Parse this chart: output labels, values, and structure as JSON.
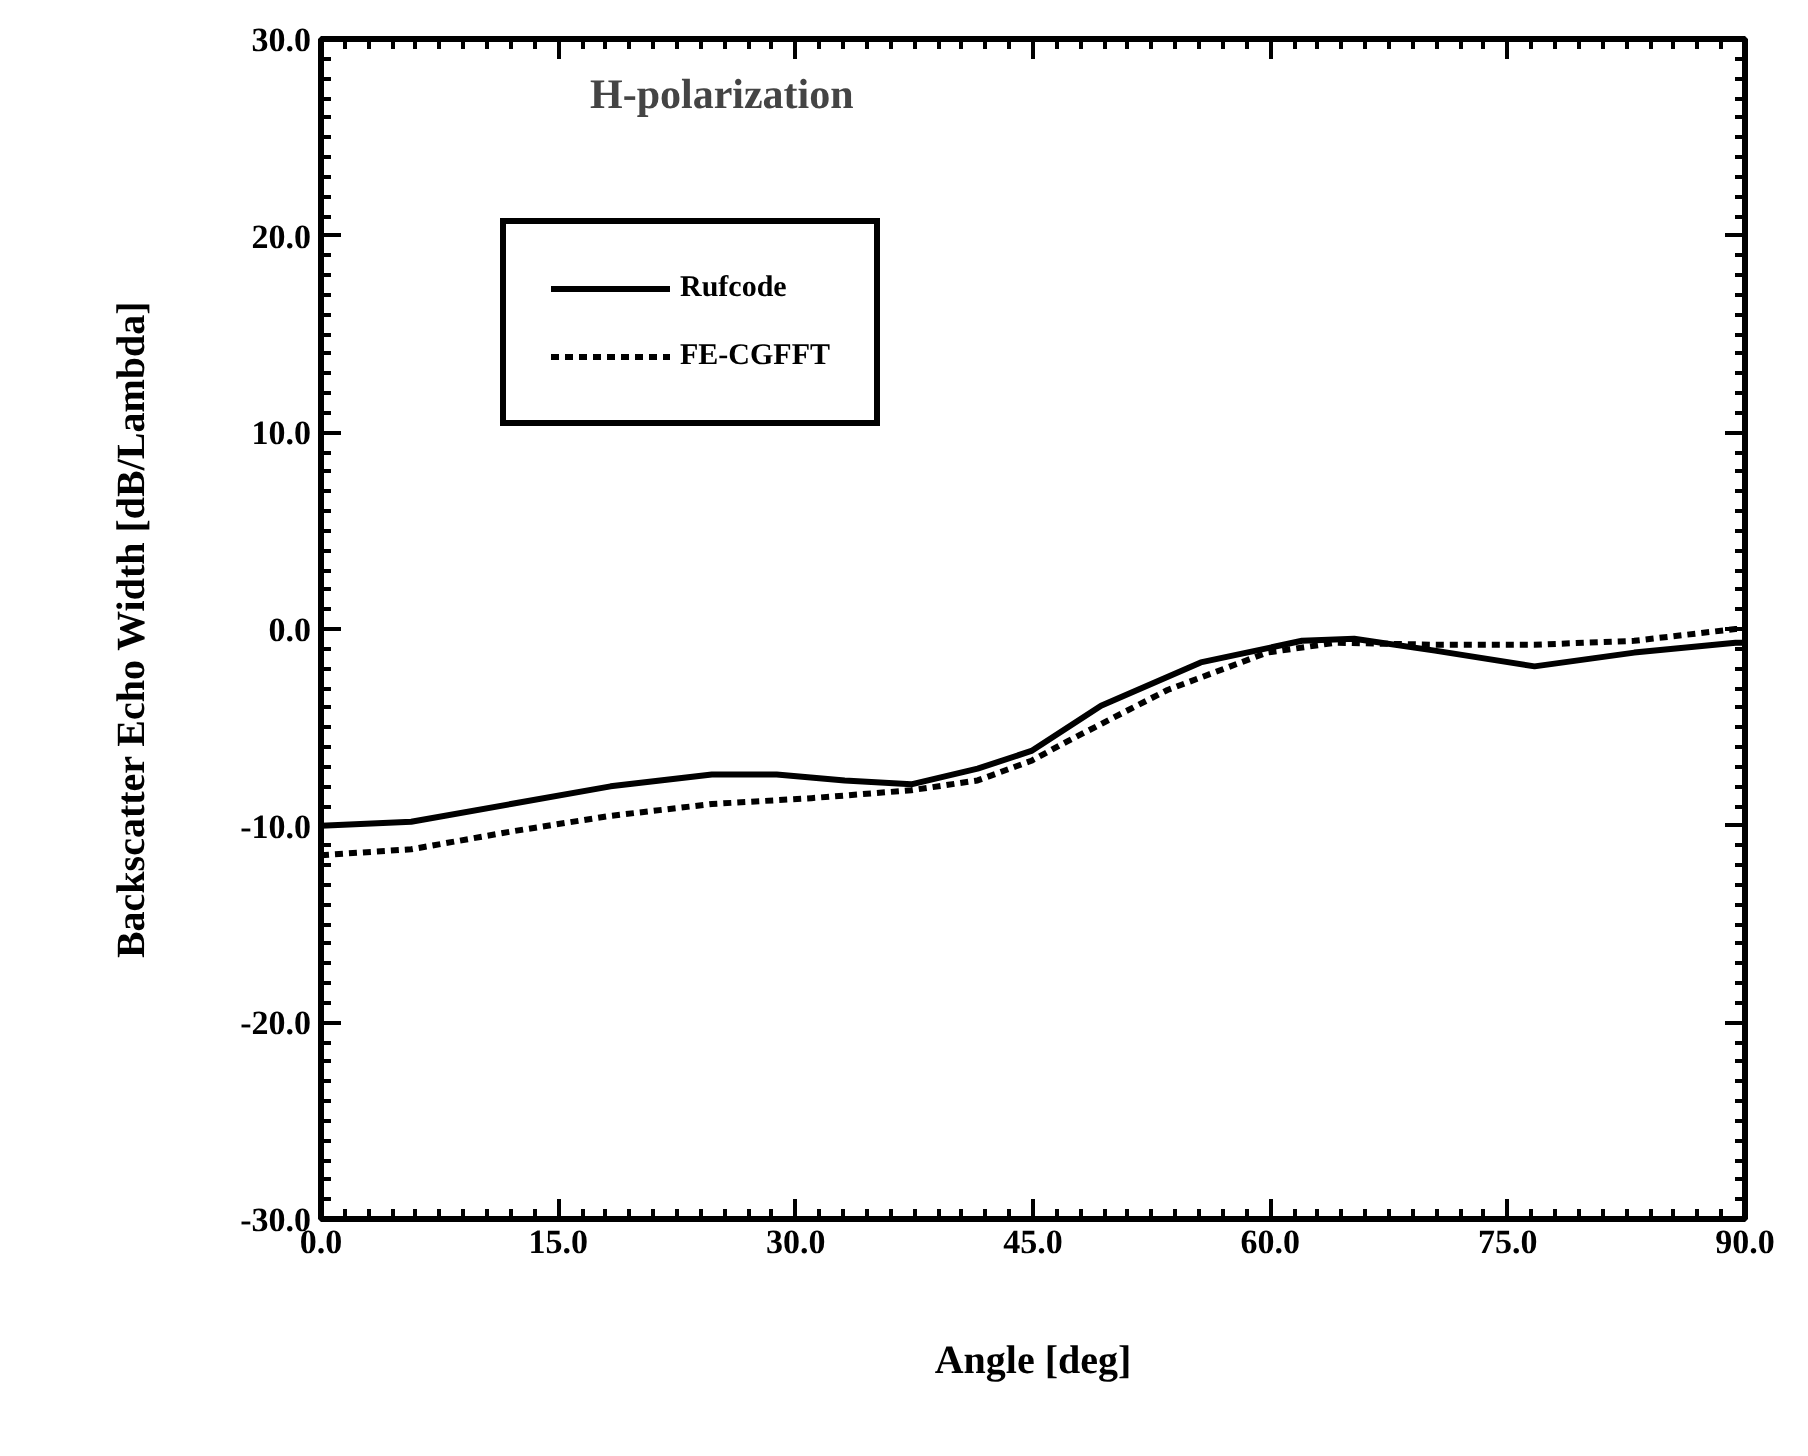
{
  "chart_data": {
    "type": "line",
    "title": "H-polarization",
    "xlabel": "Angle [deg]",
    "ylabel": "Backscatter Echo Width [dB/Lambda]",
    "xlim": [
      0,
      90
    ],
    "ylim": [
      -30,
      30
    ],
    "xticks": [
      {
        "value": 0,
        "label": "0.0"
      },
      {
        "value": 15,
        "label": "15.0"
      },
      {
        "value": 30,
        "label": "30.0"
      },
      {
        "value": 45,
        "label": "45.0"
      },
      {
        "value": 60,
        "label": "60.0"
      },
      {
        "value": 75,
        "label": "75.0"
      },
      {
        "value": 90,
        "label": "90.0"
      }
    ],
    "yticks": [
      {
        "value": -30,
        "label": "-30.0"
      },
      {
        "value": -20,
        "label": "-20.0"
      },
      {
        "value": -10,
        "label": "-10.0"
      },
      {
        "value": 0,
        "label": "0.0"
      },
      {
        "value": 10,
        "label": "10.0"
      },
      {
        "value": 20,
        "label": "20.0"
      },
      {
        "value": 30,
        "label": "30.0"
      }
    ],
    "grid": false,
    "legend": "top left",
    "series": [
      {
        "name": "Rufcode",
        "color": "#000000",
        "line_style": "solid",
        "x": [
          0,
          5.7,
          12,
          18.3,
          24.7,
          28.8,
          33.1,
          37.3,
          41.5,
          44.9,
          49.3,
          55.6,
          62,
          65.3,
          70.4,
          76.7,
          83,
          89.4,
          90
        ],
        "values": [
          -10.0,
          -9.8,
          -8.9,
          -8.0,
          -7.4,
          -7.4,
          -7.7,
          -7.9,
          -7.1,
          -6.2,
          -3.9,
          -1.7,
          -0.6,
          -0.5,
          -1.1,
          -1.9,
          -1.2,
          -0.7,
          -0.7
        ]
      },
      {
        "name": "FE-CGFFT",
        "color": "#000000",
        "line_style": "dashed",
        "x": [
          0,
          5.7,
          12,
          18.3,
          24.7,
          31,
          37.3,
          41.5,
          44.9,
          47.2,
          53.5,
          59.8,
          64.1,
          70.4,
          76.7,
          83,
          89.4,
          90
        ],
        "values": [
          -11.5,
          -11.2,
          -10.3,
          -9.5,
          -8.9,
          -8.6,
          -8.2,
          -7.7,
          -6.7,
          -5.7,
          -3.1,
          -1.2,
          -0.7,
          -0.8,
          -0.8,
          -0.6,
          0.0,
          0.0
        ]
      }
    ]
  }
}
